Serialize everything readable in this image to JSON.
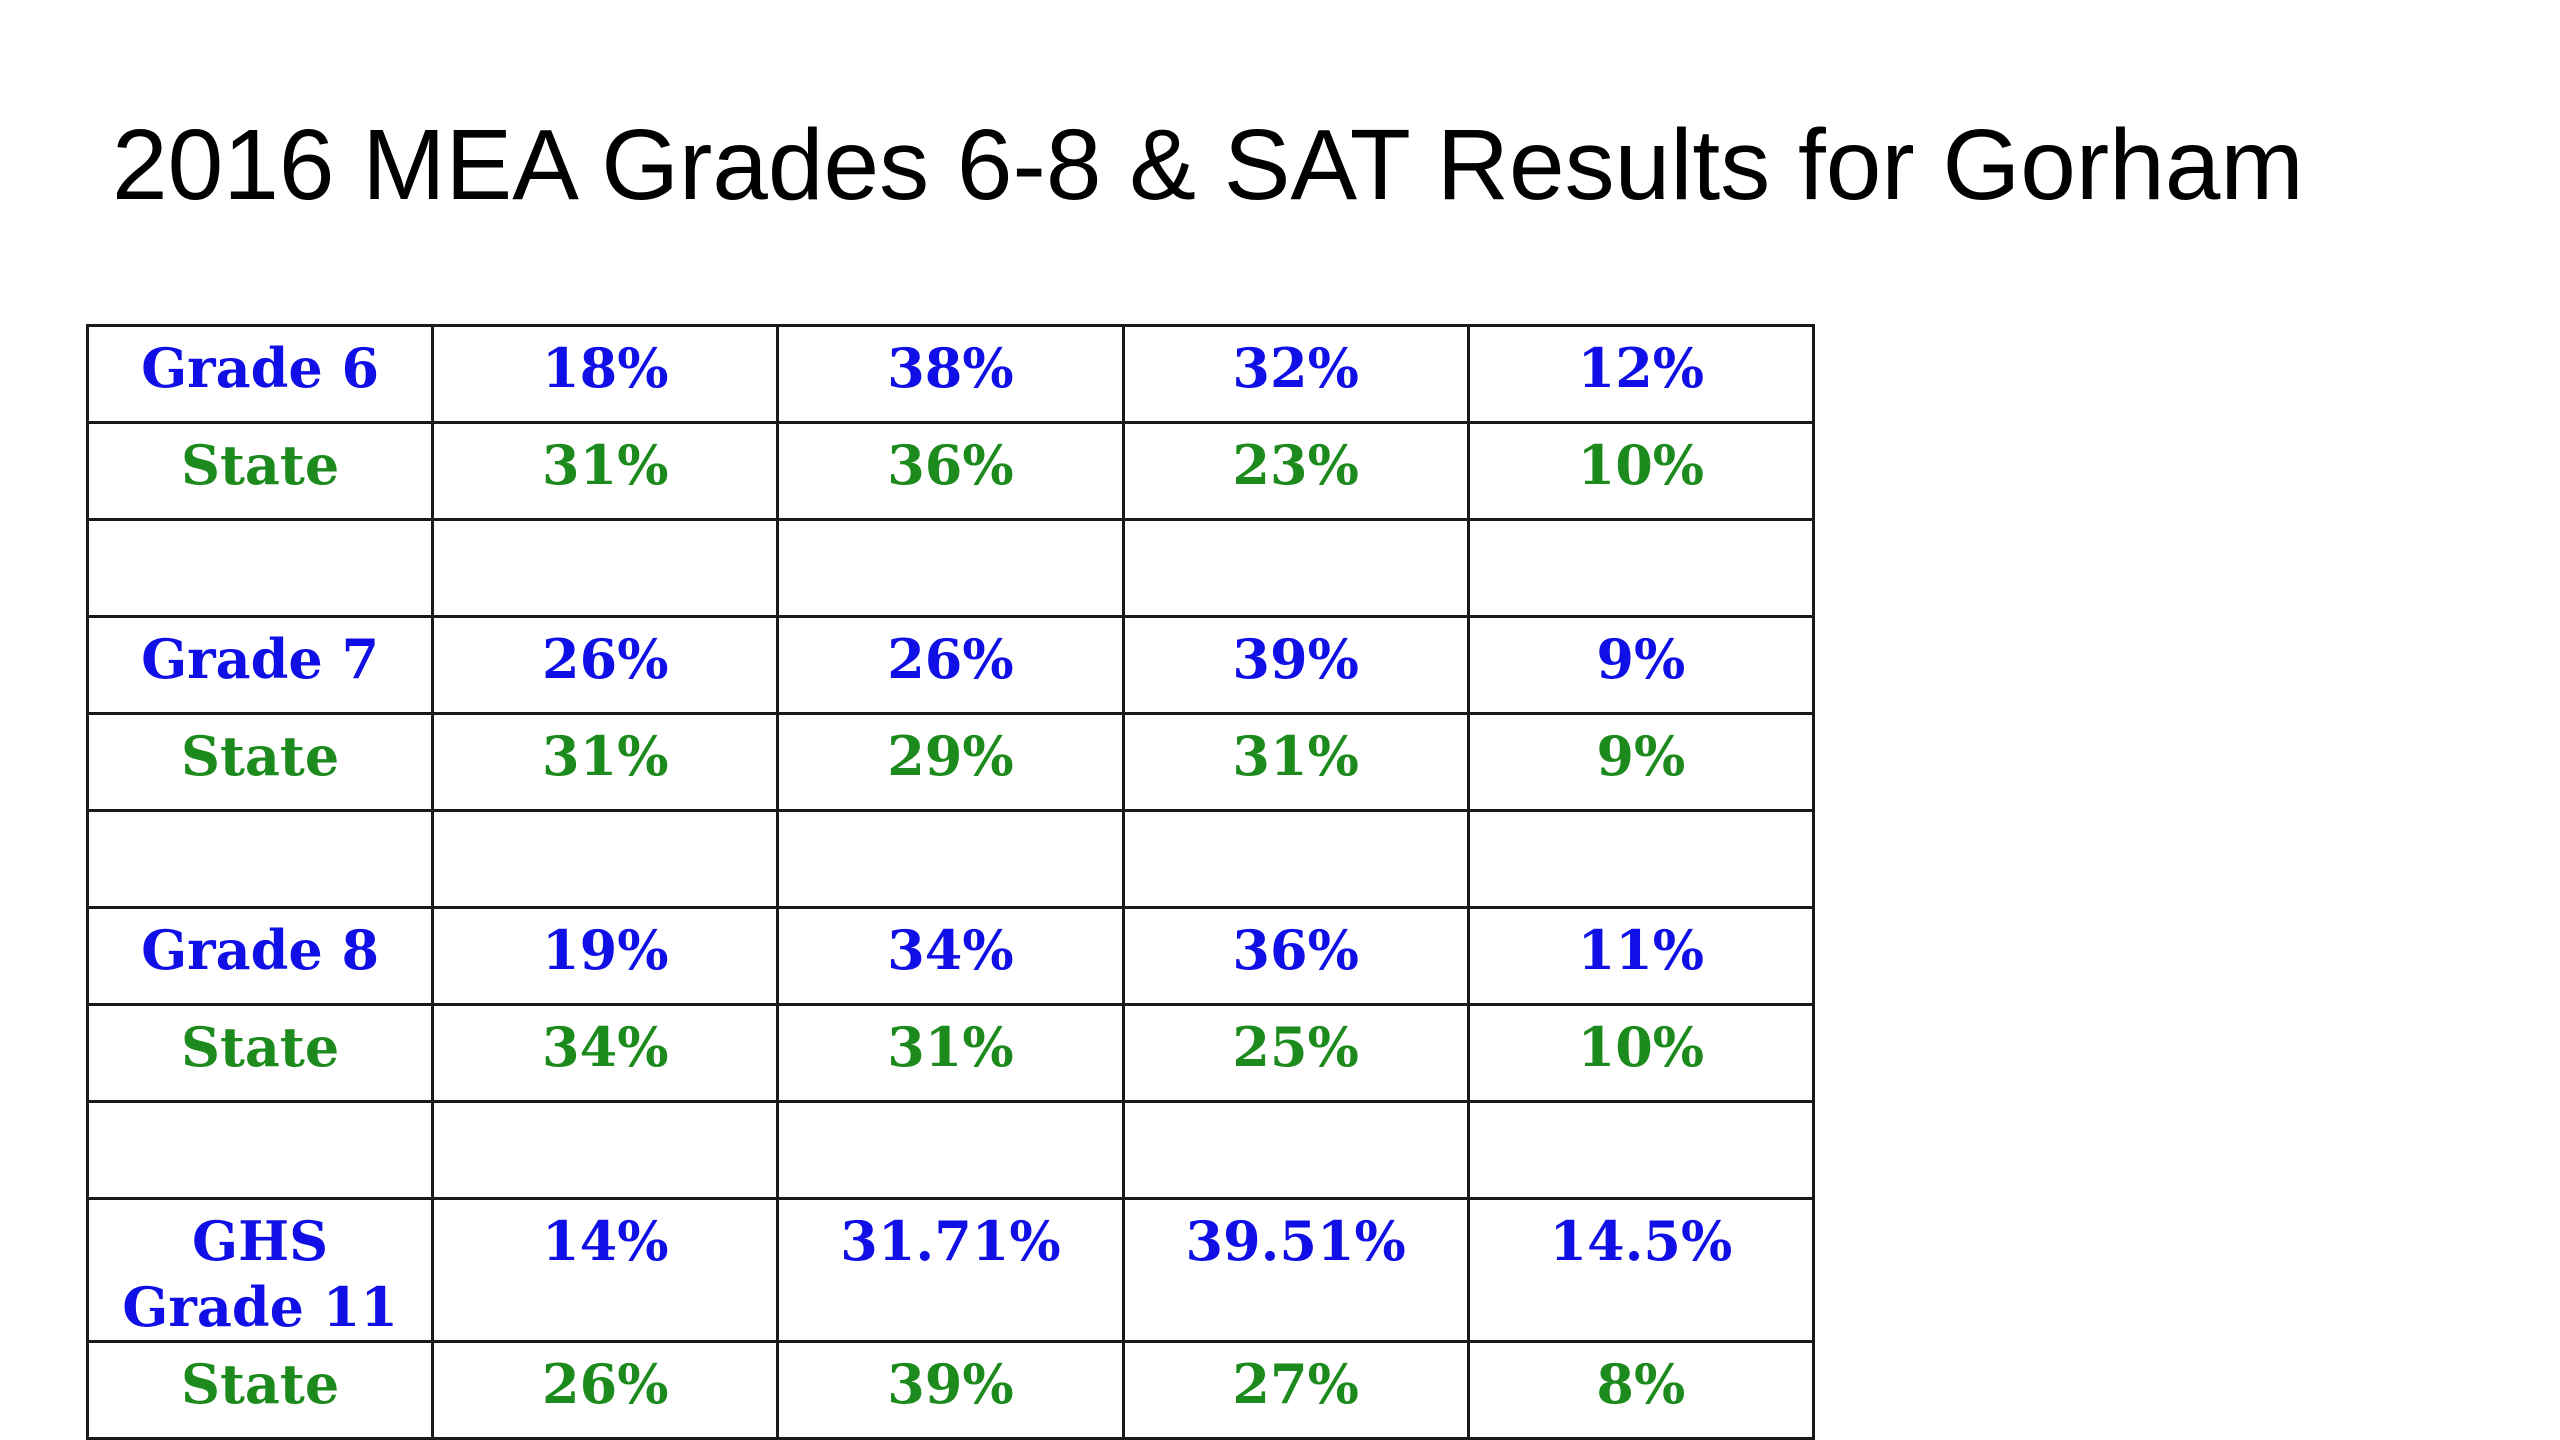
{
  "slide": {
    "title": "2016 MEA Grades 6-8 & SAT Results for Gorham"
  },
  "colors": {
    "school_text": "#1010e6",
    "state_text": "#1c8a1c",
    "border": "#1a1a1a"
  },
  "table": {
    "rows": [
      {
        "type": "school",
        "label": "Grade 6",
        "values": [
          "18%",
          "38%",
          "32%",
          "12%"
        ]
      },
      {
        "type": "state",
        "label": "State",
        "values": [
          "31%",
          "36%",
          "23%",
          "10%"
        ]
      },
      {
        "type": "blank"
      },
      {
        "type": "school",
        "label": "Grade 7",
        "values": [
          "26%",
          "26%",
          "39%",
          "9%"
        ]
      },
      {
        "type": "state",
        "label": "State",
        "values": [
          "31%",
          "29%",
          "31%",
          "9%"
        ]
      },
      {
        "type": "blank"
      },
      {
        "type": "school",
        "label": "Grade 8",
        "values": [
          "19%",
          "34%",
          "36%",
          "11%"
        ]
      },
      {
        "type": "state",
        "label": "State",
        "values": [
          "34%",
          "31%",
          "25%",
          "10%"
        ]
      },
      {
        "type": "blank"
      },
      {
        "type": "school",
        "label": "GHS Grade 11",
        "values": [
          "14%",
          "31.71%",
          "39.51%",
          "14.5%"
        ]
      },
      {
        "type": "state",
        "label": "State",
        "values": [
          "26%",
          "39%",
          "27%",
          "8%"
        ]
      }
    ]
  }
}
